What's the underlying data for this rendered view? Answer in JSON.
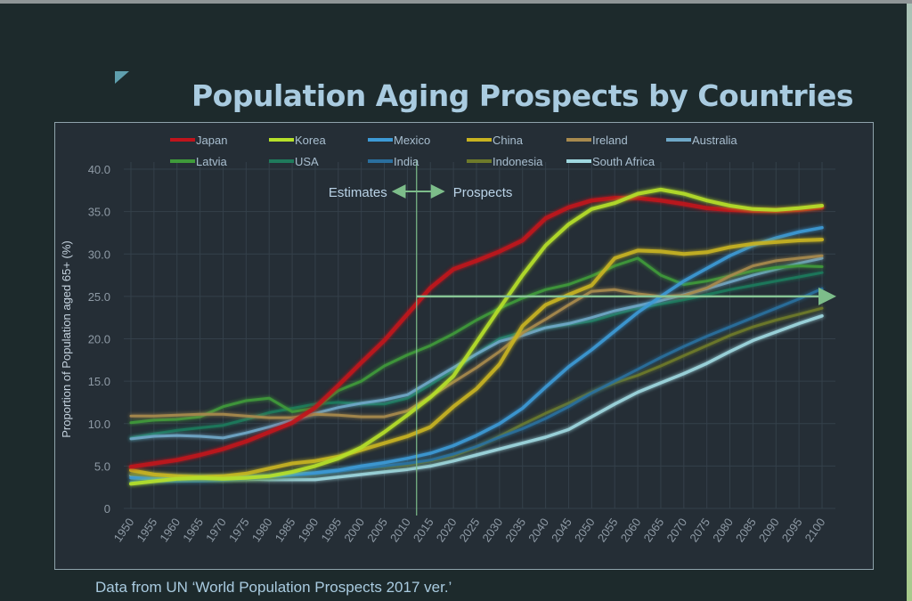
{
  "page": {
    "title": "Population Aging Prospects by Countries",
    "source_note": "Data from UN ‘World Population Prospects 2017 ver.’"
  },
  "chart_data": {
    "type": "line",
    "title": "Population Aging Prospects by Countries",
    "xlabel": "",
    "ylabel": "Proportion of Population aged 65+ (%)",
    "xlim": [
      1950,
      2100
    ],
    "ylim": [
      0,
      40
    ],
    "grid": true,
    "legend_position": "top",
    "x": [
      1950,
      1955,
      1960,
      1965,
      1970,
      1975,
      1980,
      1985,
      1990,
      1995,
      2000,
      2005,
      2010,
      2015,
      2020,
      2025,
      2030,
      2035,
      2040,
      2045,
      2050,
      2055,
      2060,
      2065,
      2070,
      2075,
      2080,
      2085,
      2090,
      2095,
      2100
    ],
    "x_tick_labels": [
      "1950",
      "1955",
      "1960",
      "1965",
      "1970",
      "1975",
      "1980",
      "1985",
      "1990",
      "1995",
      "2000",
      "2005",
      "2010",
      "2015",
      "2020",
      "2025",
      "2030",
      "2035",
      "2040",
      "2045",
      "2050",
      "2055",
      "2060",
      "2065",
      "2070",
      "2075",
      "2080",
      "2085",
      "2090",
      "2095",
      "2100"
    ],
    "y_ticks": [
      0,
      5,
      10,
      15,
      20,
      25,
      30,
      35,
      40
    ],
    "y_tick_labels": [
      "0",
      "5.0",
      "10.0",
      "15.0",
      "20.0",
      "25.0",
      "30.0",
      "35.0",
      "40.0"
    ],
    "annotations": {
      "divider_year": 2012,
      "estimates_label": "Estimates",
      "prospects_label": "Prospects",
      "reference_line_value": 25,
      "reference_line_start_year": 2012,
      "arrow_color": "#7dbd8a"
    },
    "series": [
      {
        "name": "Japan",
        "color": "#c0141c",
        "width": 4.5,
        "values": [
          4.9,
          5.3,
          5.7,
          6.3,
          7.0,
          7.9,
          9.0,
          10.1,
          11.9,
          14.5,
          17.2,
          19.8,
          22.9,
          26.0,
          28.2,
          29.2,
          30.3,
          31.6,
          34.2,
          35.5,
          36.3,
          36.6,
          36.6,
          36.3,
          35.9,
          35.4,
          35.2,
          35.1,
          35.1,
          35.2,
          35.5
        ]
      },
      {
        "name": "Korea",
        "color": "#b6e02a",
        "width": 4,
        "values": [
          2.9,
          3.2,
          3.5,
          3.6,
          3.5,
          3.6,
          3.8,
          4.3,
          5.0,
          5.9,
          7.2,
          9.0,
          11.0,
          13.1,
          15.6,
          19.6,
          23.6,
          27.5,
          31.0,
          33.5,
          35.3,
          36.0,
          37.1,
          37.6,
          37.1,
          36.3,
          35.7,
          35.3,
          35.2,
          35.4,
          35.7
        ]
      },
      {
        "name": "Mexico",
        "color": "#3d9ad6",
        "width": 3.5,
        "values": [
          3.6,
          3.5,
          3.5,
          3.6,
          3.6,
          3.7,
          3.8,
          4.0,
          4.2,
          4.5,
          5.0,
          5.4,
          5.9,
          6.5,
          7.4,
          8.6,
          10.0,
          11.8,
          14.3,
          16.7,
          18.7,
          20.9,
          23.1,
          25.0,
          26.8,
          28.3,
          29.8,
          31.0,
          31.9,
          32.6,
          33.1
        ]
      },
      {
        "name": "China",
        "color": "#c8b320",
        "width": 4,
        "values": [
          4.5,
          4.0,
          3.8,
          3.7,
          3.8,
          4.1,
          4.7,
          5.3,
          5.6,
          6.1,
          6.9,
          7.7,
          8.5,
          9.6,
          12.0,
          14.1,
          17.0,
          21.5,
          24.0,
          25.2,
          26.3,
          29.5,
          30.4,
          30.3,
          30.0,
          30.2,
          30.8,
          31.2,
          31.4,
          31.6,
          31.7
        ]
      },
      {
        "name": "Ireland",
        "color": "#a88a4e",
        "width": 3,
        "values": [
          10.9,
          10.9,
          11.0,
          11.1,
          11.1,
          10.9,
          10.7,
          10.7,
          11.1,
          11.0,
          10.8,
          10.8,
          11.5,
          13.2,
          14.9,
          16.6,
          18.5,
          20.7,
          22.3,
          24.0,
          25.6,
          25.8,
          25.3,
          25.0,
          25.1,
          26.0,
          27.4,
          28.6,
          29.2,
          29.5,
          29.8
        ]
      },
      {
        "name": "Australia",
        "color": "#6fa8c8",
        "width": 3,
        "values": [
          8.2,
          8.5,
          8.6,
          8.5,
          8.3,
          8.9,
          9.6,
          10.4,
          11.2,
          11.9,
          12.4,
          12.8,
          13.4,
          15.0,
          16.6,
          18.2,
          19.7,
          20.4,
          21.3,
          21.8,
          22.5,
          23.3,
          23.9,
          24.5,
          25.2,
          25.9,
          26.7,
          27.5,
          28.2,
          28.9,
          29.5
        ]
      },
      {
        "name": "Latvia",
        "color": "#3f9a3a",
        "width": 3,
        "values": [
          10.1,
          10.4,
          10.5,
          10.8,
          12.0,
          12.7,
          13.0,
          11.4,
          11.8,
          13.9,
          15.0,
          16.8,
          18.1,
          19.2,
          20.6,
          22.2,
          23.6,
          24.8,
          25.8,
          26.4,
          27.4,
          28.6,
          29.5,
          27.5,
          26.4,
          26.8,
          27.4,
          28.0,
          28.4,
          28.6,
          28.5
        ]
      },
      {
        "name": "USA",
        "color": "#1f7a5c",
        "width": 3,
        "values": [
          8.3,
          8.8,
          9.2,
          9.5,
          9.8,
          10.5,
          11.3,
          11.8,
          12.3,
          12.5,
          12.3,
          12.3,
          13.0,
          14.6,
          16.3,
          18.2,
          20.0,
          20.8,
          21.3,
          21.7,
          22.1,
          22.9,
          23.6,
          24.1,
          24.6,
          25.2,
          25.8,
          26.3,
          26.8,
          27.3,
          27.8
        ]
      },
      {
        "name": "India",
        "color": "#2a6f9e",
        "width": 3,
        "values": [
          3.1,
          3.2,
          3.2,
          3.2,
          3.3,
          3.5,
          3.7,
          3.9,
          4.1,
          4.4,
          4.7,
          5.0,
          5.3,
          5.7,
          6.4,
          7.3,
          8.4,
          9.4,
          10.6,
          12.0,
          13.6,
          15.0,
          16.4,
          17.8,
          19.1,
          20.3,
          21.4,
          22.5,
          23.6,
          24.7,
          25.9
        ]
      },
      {
        "name": "Indonesia",
        "color": "#6e7a2a",
        "width": 3,
        "values": [
          4.0,
          3.8,
          3.6,
          3.5,
          3.4,
          3.5,
          3.6,
          3.8,
          4.0,
          4.4,
          4.7,
          4.9,
          5.1,
          5.6,
          6.2,
          7.2,
          8.5,
          9.9,
          11.2,
          12.4,
          13.7,
          14.8,
          15.7,
          16.8,
          18.0,
          19.2,
          20.4,
          21.4,
          22.2,
          22.9,
          23.6
        ]
      },
      {
        "name": "South Africa",
        "color": "#9fd8e0",
        "width": 3.5,
        "values": [
          3.9,
          3.8,
          3.7,
          3.6,
          3.6,
          3.5,
          3.4,
          3.4,
          3.4,
          3.7,
          4.0,
          4.3,
          4.6,
          5.0,
          5.6,
          6.3,
          7.0,
          7.7,
          8.4,
          9.3,
          10.8,
          12.3,
          13.7,
          14.8,
          15.9,
          17.1,
          18.5,
          19.8,
          20.8,
          21.8,
          22.7
        ]
      }
    ]
  }
}
